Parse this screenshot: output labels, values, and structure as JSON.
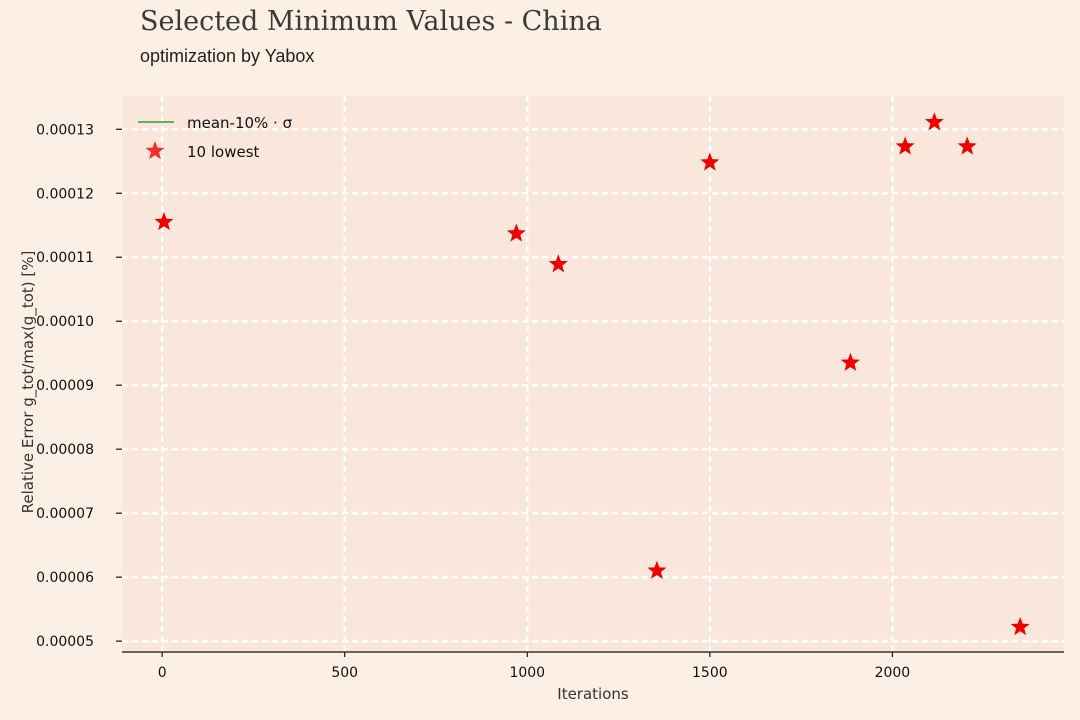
{
  "header": {
    "title": "Selected Minimum Values - China",
    "subtitle": "optimization by Yabox"
  },
  "colors": {
    "background": "#fcf0e5",
    "plot_area": "#f9e7db",
    "grid": "#ffffff",
    "marker": "#ee0000",
    "mean_line": "#2ca02c"
  },
  "chart_data": {
    "type": "scatter",
    "title": "Selected Minimum Values - China",
    "subtitle": "optimization by Yabox",
    "xlabel": "Iterations",
    "ylabel": "Relative Error g_tot/max(g_tot) [%]",
    "xlim": [
      -110,
      2470
    ],
    "ylim": [
      4.83e-05,
      0.0001352
    ],
    "grid": true,
    "legend_position": "top-left",
    "x_ticks": [
      0,
      500,
      1000,
      1500,
      2000
    ],
    "x_tick_labels": [
      "0",
      "500",
      "1000",
      "1500",
      "2000"
    ],
    "y_ticks": [
      5e-05,
      6e-05,
      7e-05,
      8e-05,
      9e-05,
      0.0001,
      0.00011,
      0.00012,
      0.00013
    ],
    "y_tick_labels": [
      "0.00005",
      "0.00006",
      "0.00007",
      "0.00008",
      "0.00009",
      "0.00010",
      "0.00011",
      "0.00012",
      "0.00013"
    ],
    "legend": [
      {
        "label": "mean-10% · σ",
        "marker": "line"
      },
      {
        "label": "10 lowest",
        "marker": "star"
      }
    ],
    "series": [
      {
        "name": "10 lowest",
        "marker": "star",
        "points": [
          {
            "x": 5,
            "y": 0.0001155
          },
          {
            "x": 970,
            "y": 0.0001137
          },
          {
            "x": 1085,
            "y": 0.0001089
          },
          {
            "x": 1355,
            "y": 6.1e-05
          },
          {
            "x": 1500,
            "y": 0.0001248
          },
          {
            "x": 1885,
            "y": 9.35e-05
          },
          {
            "x": 2035,
            "y": 0.0001273
          },
          {
            "x": 2115,
            "y": 0.0001311
          },
          {
            "x": 2205,
            "y": 0.0001273
          },
          {
            "x": 2350,
            "y": 5.22e-05
          }
        ]
      }
    ]
  }
}
